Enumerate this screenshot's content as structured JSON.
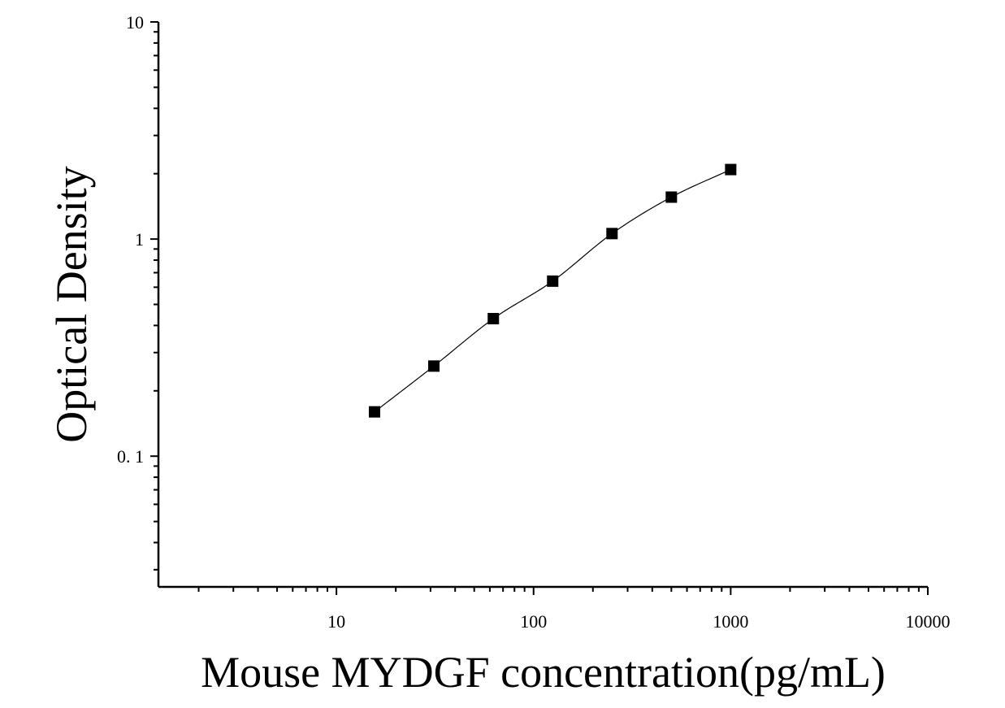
{
  "chart_data": {
    "type": "scatter",
    "xlabel": "Mouse MYDGF concentration(pg/mL)",
    "ylabel": "Optical Density",
    "xscale": "log",
    "yscale": "log",
    "xlim": [
      1.25,
      10000
    ],
    "ylim": [
      0.025,
      10
    ],
    "x_ticks": [
      10,
      100,
      1000,
      10000
    ],
    "x_tick_labels": [
      "10",
      "100",
      "1000",
      "10000"
    ],
    "y_ticks": [
      0.1,
      1,
      10
    ],
    "y_tick_labels": [
      "0. 1",
      "1",
      "10"
    ],
    "grid": false,
    "legend": "none",
    "series": [
      {
        "marker": "square",
        "color": "#000000",
        "x": [
          15.6,
          31.2,
          62.5,
          125,
          250,
          500,
          1000
        ],
        "y": [
          0.16,
          0.26,
          0.43,
          0.64,
          1.06,
          1.56,
          2.09
        ],
        "fit_curve": true
      }
    ]
  }
}
